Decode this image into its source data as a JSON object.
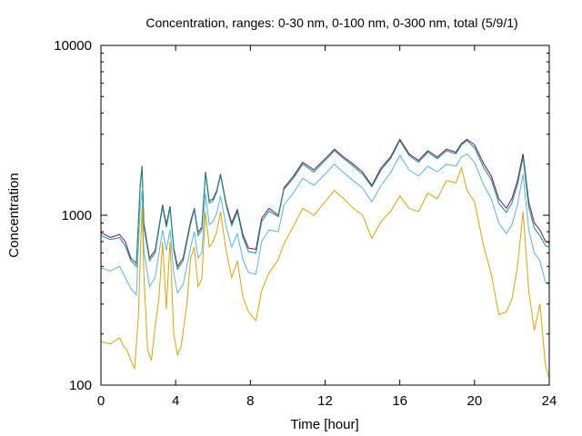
{
  "chart_data": {
    "type": "line",
    "title": "Concentration, ranges: 0-30 nm, 0-100 nm, 0-300 nm, total (5/9/1)",
    "xlabel": "Time [hour]",
    "ylabel": "Concentration",
    "xlim": [
      0,
      24
    ],
    "ylim": [
      100,
      10000
    ],
    "yscale": "log",
    "grid": false,
    "legend": "none",
    "x_ticks": [
      0,
      4,
      8,
      12,
      16,
      20,
      24
    ],
    "x_tick_labels": [
      "0",
      "4",
      "8",
      "12",
      "16",
      "20",
      "24"
    ],
    "y_ticks": [
      100,
      1000,
      10000
    ],
    "y_tick_labels": [
      "100",
      "1000",
      "10000"
    ],
    "series": [
      {
        "color": "#800080",
        "points": [
          [
            0,
            790
          ],
          [
            0.5,
            740
          ],
          [
            1,
            770
          ],
          [
            1.3,
            700
          ],
          [
            1.6,
            560
          ],
          [
            1.9,
            520
          ],
          [
            2.1,
            1500
          ],
          [
            2.2,
            1950
          ],
          [
            2.3,
            900
          ],
          [
            2.6,
            560
          ],
          [
            2.9,
            620
          ],
          [
            3.3,
            1150
          ],
          [
            3.5,
            880
          ],
          [
            3.7,
            1130
          ],
          [
            3.9,
            640
          ],
          [
            4.1,
            500
          ],
          [
            4.4,
            560
          ],
          [
            4.8,
            920
          ],
          [
            5.0,
            1100
          ],
          [
            5.2,
            790
          ],
          [
            5.4,
            850
          ],
          [
            5.6,
            1800
          ],
          [
            5.8,
            1220
          ],
          [
            6.0,
            1250
          ],
          [
            6.2,
            1400
          ],
          [
            6.4,
            1750
          ],
          [
            6.7,
            1180
          ],
          [
            7.0,
            900
          ],
          [
            7.3,
            1080
          ],
          [
            7.6,
            770
          ],
          [
            7.9,
            640
          ],
          [
            8.3,
            630
          ],
          [
            8.6,
            960
          ],
          [
            9.0,
            1100
          ],
          [
            9.5,
            1000
          ],
          [
            9.8,
            1450
          ],
          [
            10.3,
            1700
          ],
          [
            10.8,
            2050
          ],
          [
            11.4,
            1850
          ],
          [
            12.0,
            2150
          ],
          [
            12.5,
            2450
          ],
          [
            13.0,
            2200
          ],
          [
            13.5,
            2000
          ],
          [
            14.0,
            1800
          ],
          [
            14.5,
            1500
          ],
          [
            15.0,
            1900
          ],
          [
            15.5,
            2200
          ],
          [
            16.0,
            2800
          ],
          [
            16.5,
            2300
          ],
          [
            17.0,
            2100
          ],
          [
            17.5,
            2400
          ],
          [
            18.0,
            2200
          ],
          [
            18.5,
            2450
          ],
          [
            19.0,
            2350
          ],
          [
            19.3,
            2650
          ],
          [
            19.6,
            2800
          ],
          [
            20.0,
            2600
          ],
          [
            20.5,
            2000
          ],
          [
            20.9,
            1700
          ],
          [
            21.3,
            1250
          ],
          [
            21.7,
            1100
          ],
          [
            22.0,
            1250
          ],
          [
            22.3,
            1600
          ],
          [
            22.6,
            2300
          ],
          [
            22.9,
            1200
          ],
          [
            23.2,
            900
          ],
          [
            23.5,
            820
          ],
          [
            23.8,
            700
          ],
          [
            24.0,
            690
          ]
        ]
      },
      {
        "color": "#009E73",
        "points": [
          [
            0,
            760
          ],
          [
            0.5,
            720
          ],
          [
            1,
            740
          ],
          [
            1.3,
            660
          ],
          [
            1.6,
            540
          ],
          [
            1.9,
            500
          ],
          [
            2.1,
            1450
          ],
          [
            2.2,
            1900
          ],
          [
            2.3,
            860
          ],
          [
            2.6,
            540
          ],
          [
            2.9,
            600
          ],
          [
            3.3,
            1120
          ],
          [
            3.5,
            850
          ],
          [
            3.7,
            1100
          ],
          [
            3.9,
            620
          ],
          [
            4.1,
            480
          ],
          [
            4.4,
            540
          ],
          [
            4.8,
            890
          ],
          [
            5.0,
            1080
          ],
          [
            5.2,
            760
          ],
          [
            5.4,
            820
          ],
          [
            5.6,
            1760
          ],
          [
            5.8,
            1180
          ],
          [
            6.0,
            1220
          ],
          [
            6.2,
            1370
          ],
          [
            6.4,
            1720
          ],
          [
            6.7,
            1150
          ],
          [
            7.0,
            870
          ],
          [
            7.3,
            1050
          ],
          [
            7.6,
            740
          ],
          [
            7.9,
            610
          ],
          [
            8.3,
            600
          ],
          [
            8.6,
            920
          ],
          [
            9.0,
            1060
          ],
          [
            9.5,
            980
          ],
          [
            9.8,
            1420
          ],
          [
            10.3,
            1650
          ],
          [
            10.8,
            2000
          ],
          [
            11.4,
            1800
          ],
          [
            12.0,
            2100
          ],
          [
            12.5,
            2400
          ],
          [
            13.0,
            2150
          ],
          [
            13.5,
            1950
          ],
          [
            14.0,
            1750
          ],
          [
            14.5,
            1470
          ],
          [
            15.0,
            1850
          ],
          [
            15.5,
            2150
          ],
          [
            16.0,
            2750
          ],
          [
            16.5,
            2250
          ],
          [
            17.0,
            2050
          ],
          [
            17.5,
            2350
          ],
          [
            18.0,
            2150
          ],
          [
            18.5,
            2400
          ],
          [
            19.0,
            2300
          ],
          [
            19.3,
            2600
          ],
          [
            19.6,
            2750
          ],
          [
            20.0,
            2500
          ],
          [
            20.5,
            1900
          ],
          [
            20.9,
            1620
          ],
          [
            21.3,
            1180
          ],
          [
            21.7,
            1040
          ],
          [
            22.0,
            1180
          ],
          [
            22.3,
            1520
          ],
          [
            22.6,
            2200
          ],
          [
            22.9,
            1120
          ],
          [
            23.2,
            840
          ],
          [
            23.5,
            760
          ],
          [
            23.8,
            660
          ],
          [
            24.0,
            650
          ]
        ]
      },
      {
        "color": "#56B4E9",
        "points": [
          [
            0,
            490
          ],
          [
            0.5,
            470
          ],
          [
            1,
            500
          ],
          [
            1.3,
            430
          ],
          [
            1.6,
            370
          ],
          [
            1.9,
            340
          ],
          [
            2.1,
            1100
          ],
          [
            2.2,
            1400
          ],
          [
            2.3,
            620
          ],
          [
            2.6,
            380
          ],
          [
            2.9,
            430
          ],
          [
            3.3,
            820
          ],
          [
            3.5,
            620
          ],
          [
            3.7,
            820
          ],
          [
            3.9,
            450
          ],
          [
            4.1,
            350
          ],
          [
            4.4,
            390
          ],
          [
            4.8,
            650
          ],
          [
            5.0,
            800
          ],
          [
            5.2,
            560
          ],
          [
            5.4,
            600
          ],
          [
            5.6,
            1350
          ],
          [
            5.8,
            880
          ],
          [
            6.0,
            920
          ],
          [
            6.2,
            1030
          ],
          [
            6.4,
            1300
          ],
          [
            6.7,
            860
          ],
          [
            7.0,
            650
          ],
          [
            7.3,
            780
          ],
          [
            7.6,
            550
          ],
          [
            7.9,
            460
          ],
          [
            8.3,
            450
          ],
          [
            8.6,
            700
          ],
          [
            9.0,
            820
          ],
          [
            9.5,
            800
          ],
          [
            9.8,
            1150
          ],
          [
            10.3,
            1350
          ],
          [
            10.8,
            1650
          ],
          [
            11.4,
            1500
          ],
          [
            12.0,
            1750
          ],
          [
            12.5,
            2000
          ],
          [
            13.0,
            1780
          ],
          [
            13.5,
            1600
          ],
          [
            14.0,
            1450
          ],
          [
            14.5,
            1200
          ],
          [
            15.0,
            1500
          ],
          [
            15.5,
            1780
          ],
          [
            16.0,
            2250
          ],
          [
            16.5,
            1850
          ],
          [
            17.0,
            1700
          ],
          [
            17.5,
            1950
          ],
          [
            18.0,
            1800
          ],
          [
            18.5,
            2000
          ],
          [
            19.0,
            1950
          ],
          [
            19.3,
            2200
          ],
          [
            19.6,
            2300
          ],
          [
            20.0,
            2050
          ],
          [
            20.5,
            1500
          ],
          [
            20.9,
            1250
          ],
          [
            21.3,
            900
          ],
          [
            21.7,
            780
          ],
          [
            22.0,
            880
          ],
          [
            22.3,
            1150
          ],
          [
            22.6,
            1750
          ],
          [
            22.9,
            820
          ],
          [
            23.2,
            600
          ],
          [
            23.5,
            540
          ],
          [
            23.8,
            400
          ],
          [
            24.0,
            390
          ]
        ]
      },
      {
        "color": "#E69F00",
        "points": [
          [
            0,
            180
          ],
          [
            0.5,
            175
          ],
          [
            1,
            190
          ],
          [
            1.2,
            170
          ],
          [
            1.4,
            160
          ],
          [
            1.6,
            140
          ],
          [
            1.8,
            125
          ],
          [
            2.0,
            250
          ],
          [
            2.2,
            1150
          ],
          [
            2.3,
            450
          ],
          [
            2.5,
            160
          ],
          [
            2.7,
            140
          ],
          [
            2.9,
            220
          ],
          [
            3.1,
            320
          ],
          [
            3.3,
            700
          ],
          [
            3.5,
            280
          ],
          [
            3.7,
            700
          ],
          [
            3.9,
            200
          ],
          [
            4.1,
            150
          ],
          [
            4.3,
            170
          ],
          [
            4.6,
            300
          ],
          [
            4.8,
            560
          ],
          [
            5.0,
            650
          ],
          [
            5.2,
            380
          ],
          [
            5.4,
            420
          ],
          [
            5.6,
            1050
          ],
          [
            5.8,
            650
          ],
          [
            6.0,
            700
          ],
          [
            6.2,
            800
          ],
          [
            6.4,
            1050
          ],
          [
            6.7,
            620
          ],
          [
            7.0,
            430
          ],
          [
            7.3,
            540
          ],
          [
            7.6,
            330
          ],
          [
            7.9,
            270
          ],
          [
            8.3,
            240
          ],
          [
            8.6,
            360
          ],
          [
            9.0,
            460
          ],
          [
            9.5,
            550
          ],
          [
            9.8,
            680
          ],
          [
            10.3,
            860
          ],
          [
            10.8,
            1100
          ],
          [
            11.4,
            1000
          ],
          [
            12.0,
            1200
          ],
          [
            12.5,
            1400
          ],
          [
            13.0,
            1250
          ],
          [
            13.5,
            1100
          ],
          [
            14.0,
            1000
          ],
          [
            14.5,
            730
          ],
          [
            15.0,
            920
          ],
          [
            15.5,
            1050
          ],
          [
            16.0,
            1300
          ],
          [
            16.5,
            1100
          ],
          [
            17.0,
            1050
          ],
          [
            17.5,
            1350
          ],
          [
            18.0,
            1250
          ],
          [
            18.5,
            1600
          ],
          [
            19.0,
            1550
          ],
          [
            19.3,
            1900
          ],
          [
            19.6,
            1400
          ],
          [
            20.0,
            1200
          ],
          [
            20.5,
            650
          ],
          [
            20.9,
            450
          ],
          [
            21.3,
            260
          ],
          [
            21.7,
            270
          ],
          [
            22.0,
            320
          ],
          [
            22.3,
            500
          ],
          [
            22.6,
            1050
          ],
          [
            22.9,
            360
          ],
          [
            23.2,
            210
          ],
          [
            23.5,
            300
          ],
          [
            23.8,
            130
          ],
          [
            24.0,
            110
          ]
        ]
      }
    ]
  }
}
